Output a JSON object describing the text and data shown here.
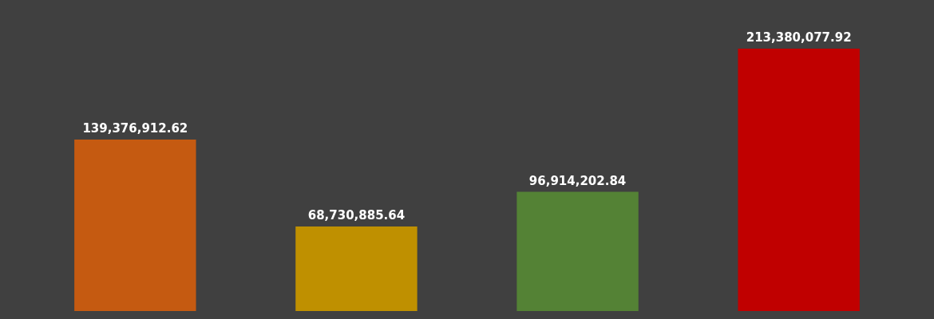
{
  "chart_data": {
    "type": "bar",
    "categories": [
      null,
      null,
      null,
      null
    ],
    "values": [
      139376912.62,
      68730885.64,
      96914202.84,
      213380077.92
    ],
    "value_labels": [
      "139,376,912.62",
      "68,730,885.64",
      "96,914,202.84",
      "213,380,077.92"
    ],
    "colors": [
      "#c55a11",
      "#bf9000",
      "#548235",
      "#c00000"
    ],
    "tick_labels": false
  }
}
